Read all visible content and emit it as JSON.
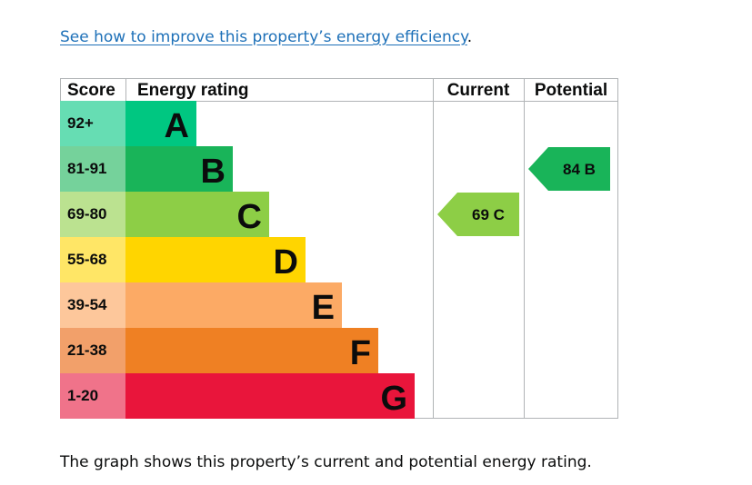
{
  "link": {
    "text": "See how to improve this property’s energy efficiency",
    "suffix": "."
  },
  "caption": "The graph shows this property’s current and potential energy rating.",
  "chart_data": {
    "type": "bar",
    "columns": [
      "Score",
      "Energy rating",
      "Current",
      "Potential"
    ],
    "bands": [
      {
        "score": "1-20",
        "letter": "G",
        "color": "#e9153b",
        "score_color": "#f0738a"
      },
      {
        "score": "21-38",
        "letter": "F",
        "color": "#ef8023",
        "score_color": "#f2a06a"
      },
      {
        "score": "39-54",
        "letter": "E",
        "color": "#fcaa65",
        "score_color": "#fdc79b"
      },
      {
        "score": "55-68",
        "letter": "D",
        "color": "#ffd500",
        "score_color": "#ffe666"
      },
      {
        "score": "69-80",
        "letter": "C",
        "color": "#8dce46",
        "score_color": "#bbe290"
      },
      {
        "score": "81-91",
        "letter": "B",
        "color": "#19b459",
        "score_color": "#75d29b"
      },
      {
        "score": "92+",
        "letter": "A",
        "color": "#00c781",
        "score_color": "#66ddb3"
      }
    ],
    "current": {
      "value": 69,
      "letter": "C",
      "label": "69 C",
      "color": "#8dce46"
    },
    "potential": {
      "value": 84,
      "letter": "B",
      "label": "84 B",
      "color": "#19b459"
    }
  }
}
